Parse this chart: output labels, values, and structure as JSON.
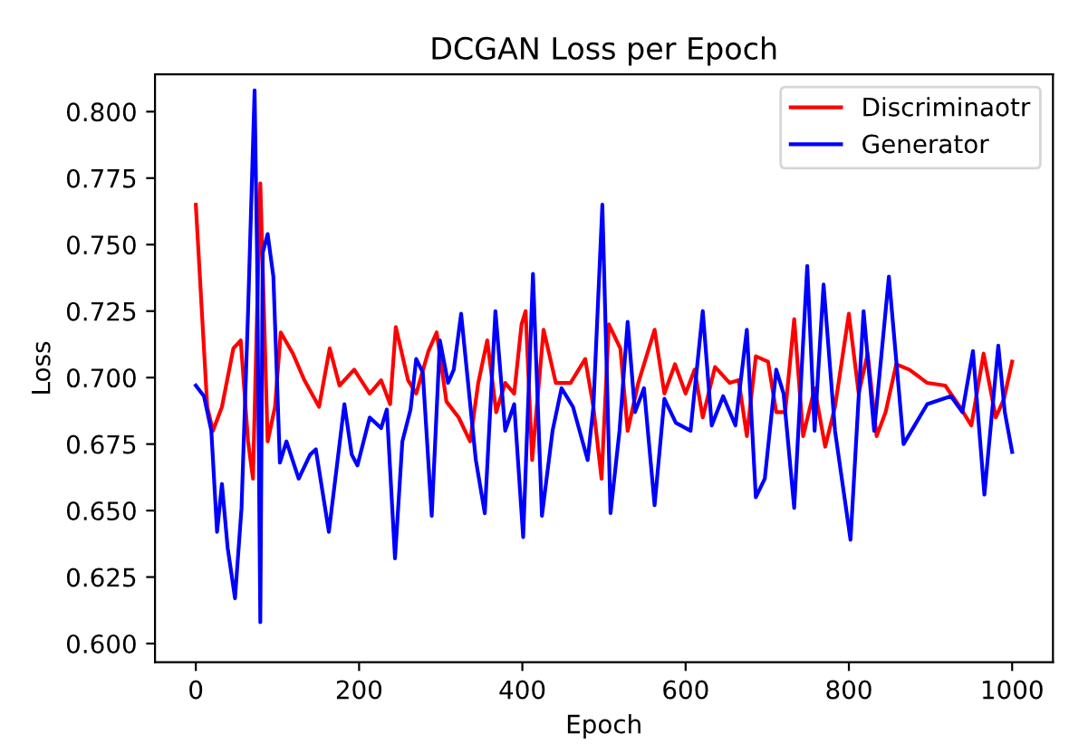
{
  "chart_data": {
    "type": "line",
    "title": "DCGAN Loss per Epoch",
    "xlabel": "Epoch",
    "ylabel": "Loss",
    "xlim": [
      -50,
      1050
    ],
    "ylim": [
      0.593,
      0.814
    ],
    "xticks": [
      0,
      200,
      400,
      600,
      800,
      1000
    ],
    "yticks": [
      {
        "value": 0.6,
        "label": "0.600"
      },
      {
        "value": 0.625,
        "label": "0.625"
      },
      {
        "value": 0.65,
        "label": "0.650"
      },
      {
        "value": 0.675,
        "label": "0.675"
      },
      {
        "value": 0.7,
        "label": "0.700"
      },
      {
        "value": 0.725,
        "label": "0.725"
      },
      {
        "value": 0.75,
        "label": "0.750"
      },
      {
        "value": 0.775,
        "label": "0.775"
      },
      {
        "value": 0.8,
        "label": "0.800"
      }
    ],
    "grid": false,
    "legend": "top right",
    "marker": "none",
    "line_style": "solid",
    "series": [
      {
        "name": "Discriminaotr",
        "color": "#ff0000",
        "x": [
          0,
          14,
          21,
          32,
          46,
          55,
          64,
          70,
          79,
          88,
          97,
          104,
          119,
          133,
          151,
          164,
          176,
          194,
          213,
          227,
          238,
          245,
          260,
          270,
          285,
          295,
          307,
          322,
          336,
          346,
          357,
          368,
          379,
          390,
          399,
          404,
          412,
          426,
          441,
          459,
          477,
          487,
          497,
          506,
          520,
          529,
          542,
          562,
          574,
          587,
          600,
          611,
          621,
          636,
          654,
          665,
          675,
          686,
          701,
          711,
          722,
          733,
          744,
          758,
          771,
          783,
          800,
          812,
          823,
          834,
          845,
          858,
          874,
          896,
          918,
          936,
          950,
          965,
          980,
          990,
          1000
        ],
        "values": [
          0.765,
          0.689,
          0.68,
          0.689,
          0.711,
          0.714,
          0.676,
          0.662,
          0.773,
          0.676,
          0.689,
          0.717,
          0.709,
          0.699,
          0.689,
          0.711,
          0.697,
          0.703,
          0.694,
          0.699,
          0.69,
          0.719,
          0.699,
          0.694,
          0.71,
          0.717,
          0.691,
          0.685,
          0.676,
          0.698,
          0.714,
          0.687,
          0.698,
          0.694,
          0.72,
          0.725,
          0.669,
          0.718,
          0.698,
          0.698,
          0.707,
          0.689,
          0.662,
          0.72,
          0.711,
          0.68,
          0.698,
          0.718,
          0.694,
          0.705,
          0.694,
          0.703,
          0.685,
          0.704,
          0.698,
          0.699,
          0.678,
          0.708,
          0.706,
          0.687,
          0.687,
          0.722,
          0.678,
          0.696,
          0.674,
          0.689,
          0.724,
          0.694,
          0.709,
          0.678,
          0.687,
          0.705,
          0.703,
          0.698,
          0.697,
          0.689,
          0.682,
          0.709,
          0.685,
          0.692,
          0.706
        ]
      },
      {
        "name": "Generator",
        "color": "#0000ff",
        "x": [
          0,
          10,
          19,
          26,
          32,
          39,
          48,
          56,
          64,
          72,
          75,
          79,
          82,
          88,
          95,
          103,
          111,
          126,
          140,
          147,
          163,
          182,
          191,
          198,
          213,
          227,
          234,
          244,
          253,
          263,
          270,
          278,
          289,
          299,
          309,
          316,
          325,
          343,
          354,
          367,
          379,
          390,
          401,
          413,
          424,
          437,
          448,
          462,
          480,
          487,
          498,
          508,
          519,
          529,
          538,
          549,
          562,
          574,
          588,
          606,
          621,
          632,
          646,
          661,
          675,
          686,
          697,
          711,
          720,
          733,
          749,
          758,
          769,
          783,
          802,
          818,
          831,
          849,
          867,
          896,
          925,
          939,
          952,
          966,
          983,
          991,
          1000
        ],
        "values": [
          0.697,
          0.693,
          0.68,
          0.642,
          0.66,
          0.636,
          0.617,
          0.651,
          0.725,
          0.808,
          0.747,
          0.608,
          0.747,
          0.754,
          0.738,
          0.668,
          0.676,
          0.662,
          0.671,
          0.673,
          0.642,
          0.69,
          0.671,
          0.667,
          0.685,
          0.681,
          0.688,
          0.632,
          0.676,
          0.688,
          0.707,
          0.702,
          0.648,
          0.714,
          0.698,
          0.703,
          0.724,
          0.669,
          0.649,
          0.725,
          0.68,
          0.69,
          0.64,
          0.739,
          0.648,
          0.68,
          0.696,
          0.689,
          0.669,
          0.689,
          0.765,
          0.649,
          0.68,
          0.721,
          0.687,
          0.696,
          0.652,
          0.692,
          0.683,
          0.68,
          0.725,
          0.682,
          0.693,
          0.682,
          0.718,
          0.655,
          0.662,
          0.703,
          0.694,
          0.651,
          0.742,
          0.68,
          0.735,
          0.68,
          0.639,
          0.725,
          0.68,
          0.738,
          0.675,
          0.69,
          0.693,
          0.687,
          0.71,
          0.656,
          0.712,
          0.687,
          0.672
        ]
      }
    ]
  }
}
